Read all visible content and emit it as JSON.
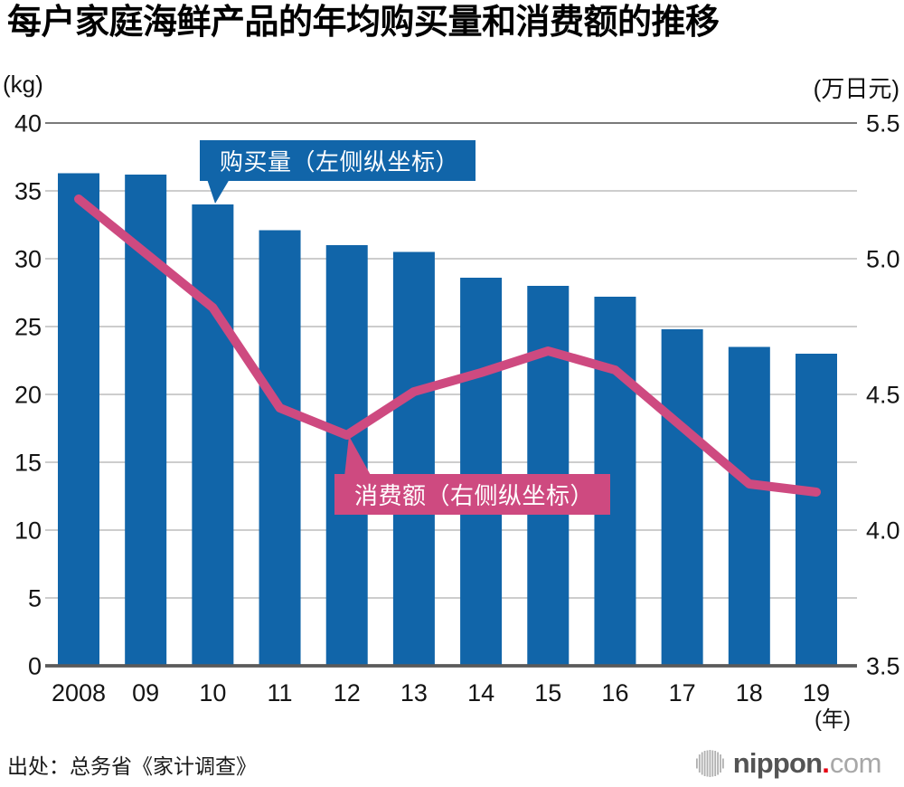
{
  "page": {
    "title": "每户家庭海鲜产品的年均购买量和消费额的推移",
    "source": "出处：总务省《家计调查》"
  },
  "logo": {
    "icon": "soundwave-icon",
    "name": "nippon",
    "dot": ".",
    "tld": "com",
    "name_color": "#545454",
    "dot_color": "#e60012",
    "tld_color": "#a8a8a8",
    "icon_color": "#b0b0b0"
  },
  "chart_data": {
    "type": "bar",
    "subtype": "bar-and-line-combo",
    "title": "每户家庭海鲜产品的年均购买量和消费额的推移",
    "categories": [
      "2008",
      "09",
      "10",
      "11",
      "12",
      "13",
      "14",
      "15",
      "16",
      "17",
      "18",
      "19"
    ],
    "x_axis_unit_label": "(年)",
    "series": [
      {
        "name": "购买量（左侧纵坐标）",
        "type": "bar",
        "axis": "left",
        "unit": "kg",
        "color": "#1165a9",
        "values": [
          36.3,
          36.2,
          34.0,
          32.1,
          31.0,
          30.5,
          28.6,
          28.0,
          27.2,
          24.8,
          23.5,
          23.0
        ]
      },
      {
        "name": "消费额（右侧纵坐标）",
        "type": "line",
        "axis": "right",
        "unit": "万日元",
        "color": "#ce4a80",
        "values": [
          5.22,
          5.02,
          4.82,
          4.45,
          4.35,
          4.51,
          4.58,
          4.66,
          4.59,
          4.38,
          4.17,
          4.14
        ]
      }
    ],
    "left_axis": {
      "unit_label": "(kg)",
      "min": 0,
      "max": 40,
      "tick_step": 5,
      "ticks": [
        "40",
        "35",
        "30",
        "25",
        "20",
        "15",
        "10",
        "5",
        "0"
      ]
    },
    "right_axis": {
      "unit_label": "(万日元)",
      "min": 3.5,
      "max": 5.5,
      "tick_step": 0.5,
      "ticks": [
        "5.5",
        "5.0",
        "4.5",
        "4.0",
        "3.5"
      ]
    },
    "grid": true,
    "legend_position": "callout-labels-on-plot",
    "gridline_color": "#cdcdcd",
    "top_line_color": "#7a7a7a",
    "baseline_color": "#5a5a5a"
  }
}
